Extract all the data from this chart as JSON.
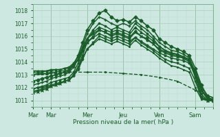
{
  "xlabel": "Pression niveau de la mer( hPa )",
  "bg_color": "#cce8e0",
  "plot_bg_color": "#cce8e0",
  "grid_major_color": "#aaccbb",
  "grid_minor_color": "#bbddcc",
  "line_color": "#1a5c2a",
  "ylim": [
    1010.5,
    1018.5
  ],
  "yticks": [
    1011,
    1012,
    1013,
    1014,
    1015,
    1016,
    1017,
    1018
  ],
  "day_labels": [
    "Mar",
    "Mar",
    "Mer",
    "Jeu",
    "Ven",
    "Sam"
  ],
  "day_positions": [
    0,
    12,
    36,
    60,
    84,
    108
  ],
  "xlim": [
    0,
    120
  ],
  "series": [
    {
      "x": [
        0,
        3,
        6,
        9,
        12,
        15,
        18,
        21,
        24,
        27,
        30,
        33,
        36,
        40,
        44,
        48,
        52,
        56,
        60,
        64,
        68,
        72,
        76,
        80,
        84,
        88,
        92,
        96,
        100,
        104,
        108,
        112,
        116,
        120
      ],
      "y": [
        1012.5,
        1012.6,
        1012.7,
        1012.8,
        1012.9,
        1013.0,
        1013.1,
        1013.2,
        1013.3,
        1013.8,
        1014.5,
        1015.5,
        1016.5,
        1017.2,
        1017.8,
        1018.0,
        1017.5,
        1017.2,
        1017.3,
        1017.1,
        1017.5,
        1017.2,
        1016.8,
        1016.5,
        1015.8,
        1015.5,
        1015.2,
        1015.0,
        1014.8,
        1014.5,
        1013.5,
        1012.2,
        1011.3,
        1011.0
      ],
      "marker": "D",
      "lw": 1.2,
      "ms": 2.5,
      "ls": "-"
    },
    {
      "x": [
        0,
        3,
        6,
        9,
        12,
        15,
        18,
        21,
        24,
        27,
        30,
        33,
        36,
        40,
        44,
        48,
        52,
        56,
        60,
        64,
        68,
        72,
        76,
        80,
        84,
        88,
        92,
        96,
        100,
        104,
        108,
        112,
        116,
        120
      ],
      "y": [
        1012.2,
        1012.3,
        1012.4,
        1012.5,
        1012.7,
        1012.8,
        1012.9,
        1013.0,
        1013.2,
        1013.6,
        1014.2,
        1015.2,
        1016.2,
        1017.0,
        1017.5,
        1017.3,
        1017.0,
        1016.8,
        1017.0,
        1016.8,
        1017.2,
        1016.8,
        1016.5,
        1016.0,
        1015.5,
        1015.2,
        1014.9,
        1014.8,
        1014.6,
        1014.3,
        1013.2,
        1011.8,
        1011.1,
        1011.0
      ],
      "marker": "+",
      "lw": 1.1,
      "ms": 3.5,
      "ls": "-"
    },
    {
      "x": [
        0,
        3,
        6,
        9,
        12,
        15,
        18,
        21,
        24,
        27,
        30,
        33,
        36,
        40,
        44,
        48,
        52,
        56,
        60,
        64,
        68,
        72,
        76,
        80,
        84,
        88,
        92,
        96,
        100,
        104,
        108,
        112,
        116,
        120
      ],
      "y": [
        1011.9,
        1012.0,
        1012.1,
        1012.2,
        1012.4,
        1012.5,
        1012.6,
        1012.7,
        1012.8,
        1013.2,
        1013.9,
        1014.8,
        1015.8,
        1016.5,
        1017.0,
        1016.8,
        1016.5,
        1016.7,
        1016.5,
        1016.3,
        1017.0,
        1016.6,
        1016.2,
        1015.8,
        1015.2,
        1014.9,
        1014.7,
        1014.6,
        1014.4,
        1014.1,
        1013.0,
        1011.5,
        1011.0,
        1011.0
      ],
      "marker": "*",
      "lw": 1.1,
      "ms": 2.5,
      "ls": "-"
    },
    {
      "x": [
        0,
        3,
        6,
        9,
        12,
        15,
        18,
        21,
        24,
        27,
        30,
        33,
        36,
        40,
        44,
        48,
        52,
        56,
        60,
        64,
        68,
        72,
        76,
        80,
        84,
        88,
        92,
        96,
        100,
        104,
        108,
        112,
        116,
        120
      ],
      "y": [
        1011.6,
        1011.7,
        1011.8,
        1011.9,
        1012.1,
        1012.2,
        1012.3,
        1012.5,
        1012.6,
        1013.0,
        1013.6,
        1014.5,
        1015.5,
        1016.0,
        1016.5,
        1016.3,
        1016.0,
        1016.2,
        1016.0,
        1015.8,
        1016.3,
        1016.0,
        1015.8,
        1015.4,
        1014.9,
        1014.7,
        1014.5,
        1014.4,
        1014.3,
        1014.0,
        1012.8,
        1011.3,
        1011.0,
        1011.0
      ],
      "marker": "x",
      "lw": 1.1,
      "ms": 2.5,
      "ls": "-"
    },
    {
      "x": [
        0,
        3,
        6,
        9,
        12,
        15,
        18,
        21,
        24,
        27,
        30,
        33,
        36,
        40,
        44,
        48,
        52,
        56,
        60,
        64,
        68,
        72,
        76,
        80,
        84,
        88,
        92,
        96,
        100,
        104,
        108,
        112,
        116,
        120
      ],
      "y": [
        1013.0,
        1013.1,
        1013.1,
        1013.1,
        1013.2,
        1013.2,
        1013.3,
        1013.3,
        1013.4,
        1013.7,
        1014.2,
        1015.0,
        1015.8,
        1016.3,
        1016.7,
        1016.5,
        1016.3,
        1016.5,
        1016.3,
        1016.1,
        1016.7,
        1016.3,
        1016.0,
        1015.6,
        1015.2,
        1014.9,
        1014.7,
        1014.6,
        1014.4,
        1014.2,
        1013.1,
        1011.9,
        1011.2,
        1011.1
      ],
      "marker": "^",
      "lw": 1.1,
      "ms": 2.5,
      "ls": "-"
    },
    {
      "x": [
        0,
        3,
        6,
        9,
        12,
        15,
        18,
        21,
        24,
        27,
        30,
        33,
        36,
        40,
        44,
        48,
        52,
        56,
        60,
        64,
        68,
        72,
        76,
        80,
        84,
        88,
        92,
        96,
        100,
        104,
        108,
        112,
        116,
        120
      ],
      "y": [
        1013.2,
        1013.2,
        1013.2,
        1013.3,
        1013.3,
        1013.4,
        1013.4,
        1013.5,
        1013.6,
        1013.9,
        1014.4,
        1015.1,
        1015.8,
        1016.2,
        1016.5,
        1016.3,
        1016.1,
        1016.3,
        1016.1,
        1015.9,
        1016.4,
        1016.0,
        1015.7,
        1015.4,
        1015.0,
        1014.8,
        1014.6,
        1014.5,
        1014.3,
        1014.2,
        1013.2,
        1012.1,
        1011.4,
        1011.2
      ],
      "marker": "s",
      "lw": 1.1,
      "ms": 2.0,
      "ls": "-"
    },
    {
      "x": [
        0,
        3,
        6,
        9,
        12,
        15,
        18,
        21,
        24,
        27,
        30,
        33,
        36,
        40,
        44,
        48,
        52,
        56,
        60,
        64,
        68,
        72,
        76,
        80,
        84,
        88,
        92,
        96,
        100,
        104,
        108,
        112,
        116,
        120
      ],
      "y": [
        1011.9,
        1012.0,
        1012.0,
        1012.1,
        1012.2,
        1012.3,
        1012.4,
        1012.5,
        1012.6,
        1012.9,
        1013.4,
        1014.2,
        1015.0,
        1015.5,
        1016.0,
        1015.8,
        1015.6,
        1015.8,
        1015.6,
        1015.4,
        1015.9,
        1015.5,
        1015.2,
        1014.9,
        1014.5,
        1014.2,
        1014.0,
        1013.9,
        1013.7,
        1013.5,
        1012.5,
        1011.2,
        1011.0,
        1011.0
      ],
      "marker": "v",
      "lw": 1.1,
      "ms": 2.0,
      "ls": "-"
    },
    {
      "x": [
        0,
        3,
        6,
        9,
        12,
        15,
        18,
        21,
        24,
        27,
        30,
        33,
        36,
        40,
        44,
        48,
        52,
        56,
        60,
        64,
        68,
        72,
        76,
        80,
        84,
        88,
        92,
        96,
        100,
        104,
        108,
        112,
        116,
        120
      ],
      "y": [
        1013.3,
        1013.3,
        1013.3,
        1013.3,
        1013.4,
        1013.4,
        1013.4,
        1013.5,
        1013.5,
        1013.8,
        1014.2,
        1014.9,
        1015.5,
        1015.9,
        1016.2,
        1016.0,
        1015.8,
        1016.0,
        1015.8,
        1015.6,
        1015.9,
        1015.6,
        1015.3,
        1015.0,
        1014.7,
        1014.5,
        1014.3,
        1014.2,
        1014.1,
        1013.9,
        1013.0,
        1011.8,
        1011.2,
        1011.0
      ],
      "marker": "p",
      "lw": 1.1,
      "ms": 2.0,
      "ls": "-"
    },
    {
      "x": [
        0,
        3,
        6,
        9,
        12,
        15,
        18,
        21,
        24,
        27,
        30,
        33,
        36,
        40,
        44,
        48,
        52,
        56,
        60,
        64,
        68,
        72,
        76,
        80,
        84,
        88,
        92,
        96,
        100,
        104,
        108,
        112,
        116,
        120
      ],
      "y": [
        1011.7,
        1011.8,
        1011.9,
        1012.0,
        1012.1,
        1012.2,
        1012.3,
        1012.5,
        1012.6,
        1013.0,
        1013.6,
        1014.3,
        1015.0,
        1015.4,
        1015.8,
        1015.6,
        1015.4,
        1015.6,
        1015.4,
        1015.2,
        1015.7,
        1015.3,
        1015.0,
        1014.7,
        1014.3,
        1014.0,
        1013.7,
        1013.6,
        1013.4,
        1013.2,
        1012.0,
        1011.1,
        1011.0,
        1011.0
      ],
      "marker": ".",
      "lw": 1.1,
      "ms": 2.5,
      "ls": "-"
    },
    {
      "x": [
        0,
        12,
        24,
        36,
        48,
        60,
        72,
        84,
        96,
        108,
        120
      ],
      "y": [
        1013.0,
        1013.1,
        1013.2,
        1013.2,
        1013.2,
        1013.1,
        1013.0,
        1012.8,
        1012.5,
        1011.8,
        1011.2
      ],
      "marker": ".",
      "lw": 1.0,
      "ms": 2.5,
      "ls": "--"
    }
  ]
}
